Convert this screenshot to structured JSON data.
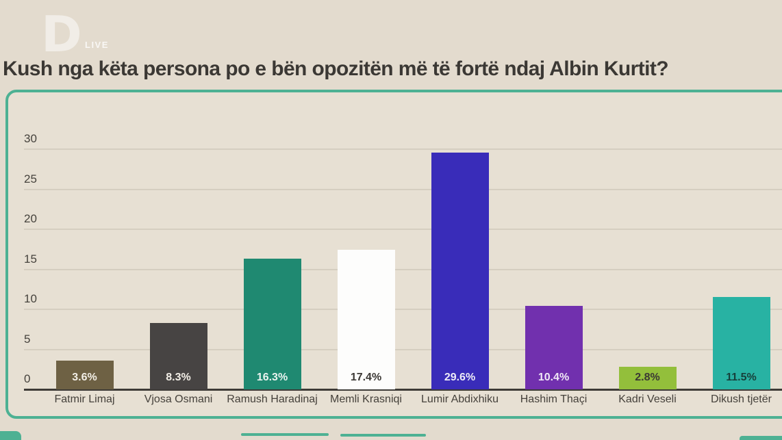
{
  "header": {
    "logo_letter": "D",
    "logo_live": "LIVE",
    "title": "Kush nga këta persona po e bën opozitën më të fortë ndaj Albin Kurtit?"
  },
  "chart_data": {
    "type": "bar",
    "title": "Kush nga këta persona po e bën opozitën më të fortë ndaj Albin Kurtit?",
    "categories": [
      "Fatmir Limaj",
      "Vjosa Osmani",
      "Ramush Haradinaj",
      "Memli Krasniqi",
      "Lumir Abdixhiku",
      "Hashim Thaçi",
      "Kadri Veseli",
      "Dikush tjetër"
    ],
    "values": [
      3.6,
      8.3,
      16.3,
      17.4,
      29.6,
      10.4,
      2.8,
      11.5
    ],
    "value_labels": [
      "3.6%",
      "8.3%",
      "16.3%",
      "17.4%",
      "29.6%",
      "10.4%",
      "2.8%",
      "11.5%"
    ],
    "bar_colors": [
      "#6e6144",
      "#474443",
      "#1f8971",
      "#fdfdfc",
      "#392cb9",
      "#7130ae",
      "#93bf3b",
      "#28b2a3"
    ],
    "value_label_colors": [
      "#f3efe7",
      "#f3efe7",
      "#eaf3ef",
      "#3b3834",
      "#eeecf7",
      "#f0e8f6",
      "#3b3834",
      "#17403b"
    ],
    "y_ticks": [
      0,
      5,
      10,
      15,
      20,
      25,
      30
    ],
    "ylim": [
      0,
      30
    ],
    "xlabel": "",
    "ylabel": "",
    "grid": true,
    "legend": false
  },
  "colors": {
    "accent_teal": "#4db193",
    "page_bg": "#e3dbce",
    "card_bg": "#e7e0d3",
    "grid_line": "#d5cec0",
    "axis_line": "#3e3b37",
    "text_dark": "#3b3834"
  }
}
